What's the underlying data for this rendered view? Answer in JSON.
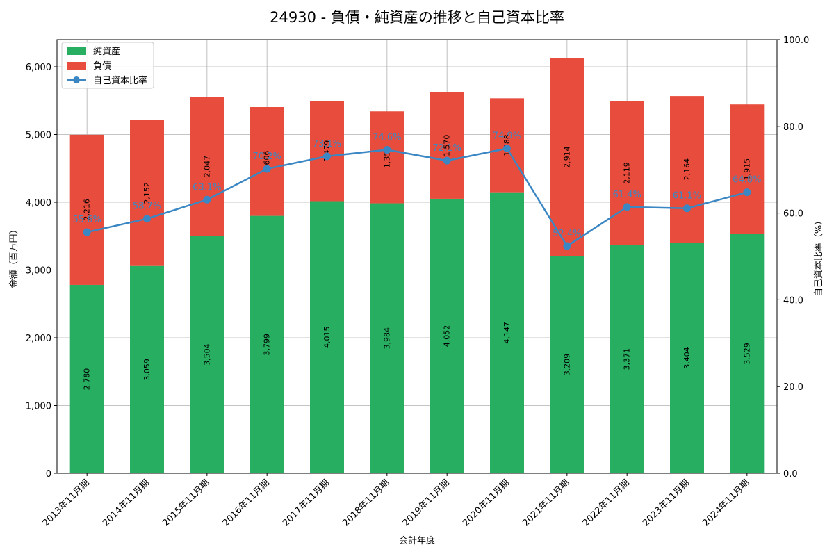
{
  "chart_data": {
    "type": "bar",
    "title": "24930 - 負債・純資産の推移と自己資本比率",
    "xlabel": "会計年度",
    "ylabel": "金額（百万円）",
    "y2label": "自己資本比率（%）",
    "ylim": [
      0,
      6400
    ],
    "y2lim": [
      0,
      100
    ],
    "yticks": [
      0,
      1000,
      2000,
      3000,
      4000,
      5000,
      6000
    ],
    "ytick_labels": [
      "0",
      "1,000",
      "2,000",
      "3,000",
      "4,000",
      "5,000",
      "6,000"
    ],
    "y2ticks": [
      0,
      20,
      40,
      60,
      80,
      100
    ],
    "y2tick_labels": [
      "0.0",
      "20.0",
      "40.0",
      "60.0",
      "80.0",
      "100.0"
    ],
    "grid": true,
    "legend_position": "top-left",
    "categories": [
      "2013年11月期",
      "2014年11月期",
      "2015年11月期",
      "2016年11月期",
      "2017年11月期",
      "2018年11月期",
      "2019年11月期",
      "2020年11月期",
      "2021年11月期",
      "2022年11月期",
      "2023年11月期",
      "2024年11月期"
    ],
    "series": [
      {
        "name": "純資産",
        "type": "bar",
        "color": "#27ae60",
        "values": [
          2780,
          3059,
          3504,
          3799,
          4015,
          3984,
          4052,
          4147,
          3209,
          3371,
          3404,
          3529
        ],
        "labels": [
          "2,780",
          "3,059",
          "3,504",
          "3,799",
          "4,015",
          "3,984",
          "4,052",
          "4,147",
          "3,209",
          "3,371",
          "3,404",
          "3,529"
        ]
      },
      {
        "name": "負債",
        "type": "bar",
        "color": "#e74c3c",
        "values": [
          2216,
          2152,
          2047,
          1606,
          1479,
          1357,
          1570,
          1388,
          2914,
          2119,
          2164,
          1915
        ],
        "labels": [
          "2,216",
          "2,152",
          "2,047",
          "1,606",
          "1,479",
          "1,357",
          "1,570",
          "1,388",
          "2,914",
          "2,119",
          "2,164",
          "1,915"
        ]
      },
      {
        "name": "自己資本比率",
        "type": "line",
        "axis": "right",
        "color": "#3a87c4",
        "values": [
          55.6,
          58.7,
          63.1,
          70.2,
          73.1,
          74.6,
          72.1,
          74.9,
          52.4,
          61.4,
          61.1,
          64.8
        ],
        "labels": [
          "55.6%",
          "58.7%",
          "63.1%",
          "70.2%",
          "73.1%",
          "74.6%",
          "72.1%",
          "74.9%",
          "52.4%",
          "61.4%",
          "61.1%",
          "64.8%"
        ]
      }
    ]
  }
}
